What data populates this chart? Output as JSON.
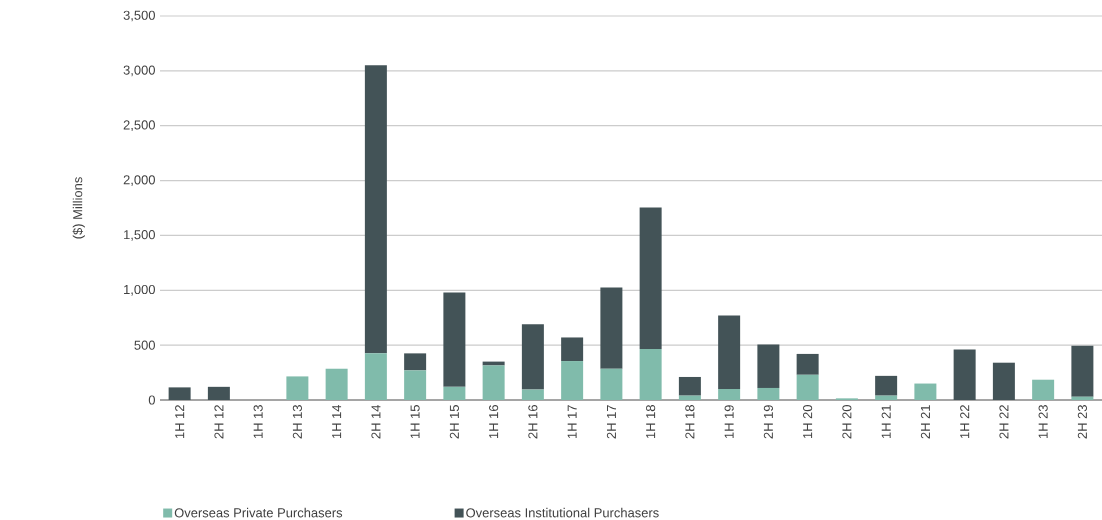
{
  "chart_data": {
    "type": "bar",
    "stacked": true,
    "ylabel": "($) Millions",
    "categories": [
      "1H 12",
      "2H 12",
      "1H 13",
      "2H 13",
      "1H 14",
      "2H 14",
      "1H 15",
      "2H 15",
      "1H 16",
      "2H 16",
      "1H 17",
      "2H 17",
      "1H 18",
      "2H 18",
      "1H 19",
      "2H 19",
      "1H 20",
      "2H 20",
      "1H 21",
      "2H 21",
      "1H 22",
      "2H 22",
      "1H 23",
      "2H 23"
    ],
    "series": [
      {
        "name": "Overseas Private Purchasers",
        "color": "#80bbab",
        "values": [
          0,
          0,
          0,
          215,
          285,
          425,
          270,
          120,
          315,
          95,
          355,
          285,
          465,
          40,
          100,
          110,
          230,
          15,
          40,
          150,
          0,
          0,
          185,
          30
        ]
      },
      {
        "name": "Overseas Institutional Purchasers",
        "color": "#435357",
        "values": [
          115,
          120,
          0,
          0,
          0,
          2625,
          155,
          860,
          35,
          595,
          215,
          740,
          1290,
          170,
          670,
          395,
          190,
          0,
          180,
          0,
          460,
          340,
          0,
          465
        ]
      }
    ],
    "ylim": [
      0,
      3500
    ],
    "yticks": [
      {
        "value": 0,
        "label": "0"
      },
      {
        "value": 500,
        "label": "500"
      },
      {
        "value": 1000,
        "label": "1,000"
      },
      {
        "value": 1500,
        "label": "1,500"
      },
      {
        "value": 2000,
        "label": "2,000"
      },
      {
        "value": 2500,
        "label": "2,500"
      },
      {
        "value": 3000,
        "label": "3,000"
      },
      {
        "value": 3500,
        "label": "3,500"
      }
    ],
    "grid": "y",
    "legend": "bottom"
  }
}
